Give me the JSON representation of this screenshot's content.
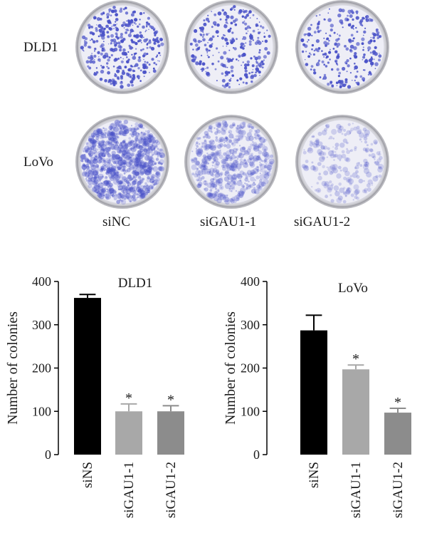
{
  "plates": {
    "rows": [
      {
        "label": "DLD1",
        "densities": [
          0.9,
          0.62,
          0.6
        ],
        "style": "dots"
      },
      {
        "label": "LoVo",
        "densities": [
          0.95,
          0.55,
          0.25
        ],
        "style": "diffuse"
      }
    ],
    "columns": [
      "siNC",
      "siGAU1-1",
      "siGAU1-2"
    ],
    "stain_color": "#4a52c8"
  },
  "chart_data": [
    {
      "type": "bar",
      "title": "DLD1",
      "ylabel": "Number of colonies",
      "xlabel": "",
      "categories": [
        "siNS",
        "siGAU1-1",
        "siGAU1-2"
      ],
      "values": [
        362,
        100,
        100
      ],
      "errors": [
        8,
        17,
        13
      ],
      "significance": [
        "",
        "*",
        "*"
      ],
      "colors": [
        "#000000",
        "#a8a8a8",
        "#8c8c8c"
      ],
      "ylim": [
        0,
        400
      ],
      "yticks": [
        0,
        100,
        200,
        300,
        400
      ],
      "grid": false
    },
    {
      "type": "bar",
      "title": "LoVo",
      "ylabel": "Number of colonies",
      "xlabel": "",
      "categories": [
        "siNS",
        "siGAU1-1",
        "siGAU1-2"
      ],
      "values": [
        287,
        197,
        97
      ],
      "errors": [
        35,
        10,
        10
      ],
      "significance": [
        "",
        "*",
        "*"
      ],
      "colors": [
        "#000000",
        "#a8a8a8",
        "#8c8c8c"
      ],
      "ylim": [
        0,
        400
      ],
      "yticks": [
        0,
        100,
        200,
        300,
        400
      ],
      "grid": false
    }
  ]
}
